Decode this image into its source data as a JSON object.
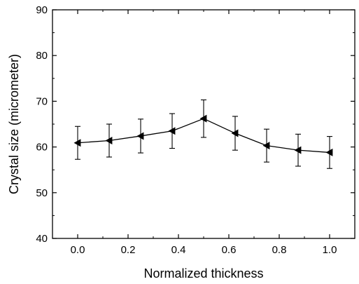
{
  "chart_data": {
    "type": "line",
    "title": "",
    "xlabel": "Normalized thickness",
    "ylabel": "Crystal size (micrometer)",
    "xlim": [
      -0.1,
      1.1
    ],
    "ylim": [
      40,
      90
    ],
    "xticks": [
      0.0,
      0.2,
      0.4,
      0.6,
      0.8,
      1.0
    ],
    "xtick_labels": [
      "0.0",
      "0.2",
      "0.4",
      "0.6",
      "0.8",
      "1.0"
    ],
    "yticks": [
      40,
      50,
      60,
      70,
      80,
      90
    ],
    "ytick_labels": [
      "40",
      "50",
      "60",
      "70",
      "80",
      "90"
    ],
    "grid": false,
    "marker": "left-triangle",
    "color": "#000000",
    "series": [
      {
        "x": [
          0.0,
          0.125,
          0.25,
          0.375,
          0.5,
          0.625,
          0.75,
          0.875,
          1.0
        ],
        "y": [
          60.9,
          61.4,
          62.4,
          63.5,
          66.2,
          63.0,
          60.3,
          59.3,
          58.8
        ],
        "error": [
          3.6,
          3.6,
          3.7,
          3.8,
          4.1,
          3.7,
          3.6,
          3.5,
          3.5
        ]
      }
    ]
  }
}
